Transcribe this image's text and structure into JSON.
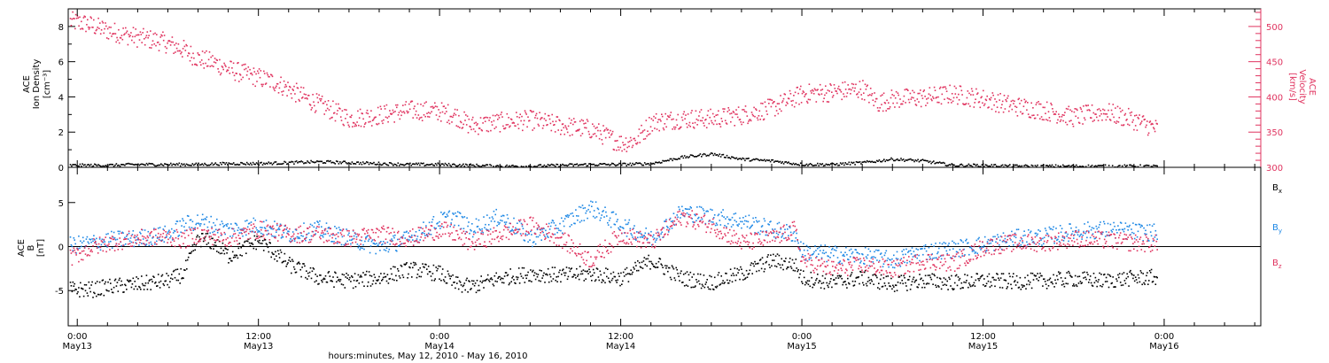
{
  "chart_data": [
    {
      "type": "scatter",
      "panel": "top",
      "xlabel": "hours:minutes, May 12, 2010 - May 16, 2010",
      "x_ticks": [
        {
          "hour": 0,
          "time": "0:00",
          "date": "May13"
        },
        {
          "hour": 12,
          "time": "12:00",
          "date": "May13"
        },
        {
          "hour": 24,
          "time": "0:00",
          "date": "May14"
        },
        {
          "hour": 36,
          "time": "12:00",
          "date": "May14"
        },
        {
          "hour": 48,
          "time": "0:00",
          "date": "May15"
        },
        {
          "hour": 60,
          "time": "12:00",
          "date": "May15"
        },
        {
          "hour": 72,
          "time": "0:00",
          "date": "May16"
        }
      ],
      "xlim_hours": [
        -0.6,
        78.4
      ],
      "left_axis": {
        "label_lines": [
          "ACE",
          "Ion Density",
          "[cm⁻³]"
        ],
        "ylim": [
          0,
          9
        ],
        "ticks": [
          "0",
          "2",
          "4",
          "6",
          "8"
        ],
        "tick_values": [
          0,
          2,
          4,
          6,
          8
        ],
        "color": "#000000"
      },
      "right_axis": {
        "label_lines": [
          "ACE",
          "Velocity",
          "[km/s]"
        ],
        "ylim": [
          300,
          525
        ],
        "ticks": [
          "300",
          "350",
          "400",
          "450",
          "500"
        ],
        "tick_values": [
          300,
          350,
          400,
          450,
          500
        ],
        "color": "#e0335f"
      },
      "series": [
        {
          "axis": "left",
          "color": "#000000",
          "x": [
            -0.5,
            2,
            4,
            6,
            8,
            10,
            12,
            14,
            16,
            18,
            20,
            22,
            24,
            26,
            28,
            30,
            32,
            34,
            36,
            38,
            40,
            42,
            44,
            46,
            48,
            50,
            52,
            54,
            56,
            58,
            60,
            62,
            64,
            66,
            68,
            70,
            71.5
          ],
          "y": [
            0.15,
            0.15,
            0.2,
            0.2,
            0.2,
            0.25,
            0.25,
            0.3,
            0.35,
            0.3,
            0.25,
            0.2,
            0.2,
            0.15,
            0.1,
            0.1,
            0.15,
            0.2,
            0.2,
            0.25,
            0.6,
            0.8,
            0.5,
            0.4,
            0.2,
            0.2,
            0.3,
            0.5,
            0.4,
            0.15,
            0.15,
            0.1,
            0.1,
            0.1,
            0.1,
            0.1,
            0.1
          ]
        },
        {
          "axis": "right",
          "color": "#e0335f",
          "x": [
            -0.5,
            0.5,
            2,
            4,
            5.5,
            7,
            8,
            9,
            10,
            12,
            13,
            14,
            15,
            16,
            17,
            18,
            20,
            22,
            24,
            25,
            26,
            28,
            30,
            32,
            34,
            35,
            36,
            37,
            38,
            40,
            42,
            44,
            46,
            47,
            48,
            50,
            52,
            53,
            54,
            56,
            58,
            60,
            62,
            64,
            66,
            68,
            70,
            71.5
          ],
          "y": [
            508,
            505,
            495,
            485,
            480,
            468,
            455,
            450,
            440,
            428,
            422,
            412,
            400,
            390,
            380,
            370,
            375,
            382,
            380,
            375,
            360,
            365,
            368,
            360,
            355,
            345,
            335,
            340,
            365,
            370,
            370,
            375,
            385,
            395,
            405,
            408,
            412,
            392,
            398,
            400,
            405,
            398,
            388,
            382,
            372,
            380,
            368,
            355
          ]
        }
      ]
    },
    {
      "type": "scatter",
      "panel": "bottom",
      "left_axis": {
        "label_lines": [
          "ACE",
          "B",
          "[nT]"
        ],
        "ylim": [
          -9,
          9
        ],
        "ticks": [
          "-5",
          "0",
          "5"
        ],
        "tick_values": [
          -5,
          0,
          5
        ]
      },
      "legend": {
        "placement": "right"
      },
      "series": [
        {
          "name": "B",
          "sub": "x",
          "color": "#000000",
          "x": [
            -0.5,
            1,
            2,
            4,
            6,
            7,
            8,
            9,
            10,
            12,
            14,
            16,
            18,
            20,
            22,
            24,
            25,
            26,
            28,
            30,
            32,
            34,
            36,
            38,
            40,
            42,
            44,
            46,
            47.5,
            48,
            50,
            52,
            54,
            56,
            58,
            60,
            62,
            64,
            66,
            68,
            70,
            71.5
          ],
          "y": [
            -4.8,
            -4.8,
            -4.5,
            -4.2,
            -3.8,
            -3.0,
            1.0,
            0.5,
            -1.0,
            0.8,
            -2.0,
            -3.5,
            -3.8,
            -3.5,
            -2.5,
            -3.0,
            -4.2,
            -4.5,
            -3.5,
            -3.0,
            -3.2,
            -3.0,
            -3.5,
            -1.5,
            -3.5,
            -4.0,
            -3.0,
            -1.5,
            -2.0,
            -3.5,
            -4.0,
            -3.5,
            -4.2,
            -3.8,
            -4.0,
            -3.8,
            -3.9,
            -3.8,
            -3.6,
            -3.8,
            -3.5,
            -3.4
          ]
        },
        {
          "name": "B",
          "sub": "y",
          "color": "#1e88e5",
          "x": [
            -0.5,
            1,
            2,
            4,
            6,
            7,
            8,
            10,
            12,
            14,
            16,
            18,
            20,
            22,
            24,
            25,
            26,
            28,
            30,
            32,
            34,
            36,
            38,
            40,
            42,
            44,
            46,
            47.5,
            48,
            50,
            52,
            54,
            56,
            58,
            60,
            62,
            64,
            66,
            68,
            70,
            71.5
          ],
          "y": [
            0.2,
            0.5,
            0.8,
            1.0,
            1.5,
            2.5,
            3.0,
            2.0,
            2.5,
            1.5,
            2.0,
            1.0,
            0.0,
            1.0,
            3.0,
            3.5,
            2.0,
            3.5,
            1.0,
            2.5,
            4.5,
            2.5,
            1.0,
            4.0,
            3.5,
            3.0,
            2.0,
            1.5,
            -0.5,
            -0.8,
            -1.0,
            -1.5,
            -0.5,
            -0.2,
            0.3,
            1.0,
            1.2,
            1.8,
            2.0,
            1.8,
            1.6
          ]
        },
        {
          "name": "B",
          "sub": "z",
          "color": "#e0335f",
          "x": [
            -0.5,
            1,
            2,
            4,
            6,
            7,
            8,
            10,
            12,
            14,
            16,
            18,
            20,
            22,
            24,
            25,
            26,
            28,
            30,
            32,
            34,
            36,
            38,
            40,
            42,
            44,
            46,
            47.5,
            48,
            50,
            52,
            54,
            56,
            58,
            60,
            62,
            64,
            66,
            68,
            70,
            71.5
          ],
          "y": [
            -1.2,
            0.0,
            0.5,
            1.0,
            1.2,
            0.8,
            1.5,
            1.0,
            2.0,
            1.5,
            1.5,
            1.0,
            1.5,
            1.0,
            2.0,
            1.5,
            0.5,
            1.5,
            2.5,
            1.0,
            -1.5,
            1.5,
            0.5,
            3.5,
            2.5,
            0.5,
            1.0,
            2.0,
            -1.5,
            -2.5,
            -2.0,
            -2.5,
            -1.5,
            -1.8,
            0.0,
            0.5,
            0.5,
            1.0,
            0.8,
            0.5,
            0.4
          ]
        }
      ]
    }
  ]
}
